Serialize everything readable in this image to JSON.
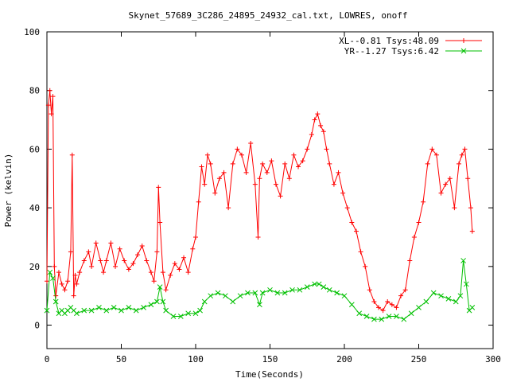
{
  "chart_data": {
    "type": "line",
    "title": "Skynet_57689_3C286_24895_24932_cal.txt, LOWRES, onoff",
    "xlabel": "Time(Seconds)",
    "ylabel": "Power (kelvin)",
    "xlim": [
      0,
      300
    ],
    "ylim": [
      -8,
      100
    ],
    "x_ticks": [
      0,
      50,
      100,
      150,
      200,
      250,
      300
    ],
    "y_ticks": [
      0,
      20,
      40,
      60,
      80,
      100
    ],
    "grid": false,
    "legend_position": "top-right",
    "series": [
      {
        "name": "XL--0.81 Tsys:48.09",
        "color": "#ff0000",
        "marker": "plus",
        "x": [
          0,
          1,
          2,
          3,
          4,
          5,
          6,
          8,
          10,
          12,
          14,
          16,
          17,
          18,
          19,
          20,
          22,
          25,
          28,
          30,
          33,
          36,
          38,
          40,
          43,
          46,
          49,
          52,
          55,
          58,
          61,
          64,
          67,
          70,
          72,
          74,
          75,
          76,
          78,
          80,
          83,
          86,
          89,
          92,
          95,
          98,
          100,
          102,
          104,
          106,
          108,
          110,
          113,
          116,
          119,
          122,
          125,
          128,
          131,
          134,
          137,
          140,
          142,
          143,
          145,
          148,
          151,
          154,
          157,
          160,
          163,
          166,
          169,
          172,
          175,
          178,
          180,
          182,
          184,
          186,
          188,
          190,
          193,
          196,
          199,
          202,
          205,
          208,
          211,
          214,
          217,
          220,
          223,
          226,
          229,
          232,
          235,
          238,
          241,
          244,
          247,
          250,
          253,
          256,
          259,
          262,
          265,
          268,
          271,
          274,
          277,
          279,
          281,
          283,
          285,
          286
        ],
        "y": [
          15,
          75,
          80,
          72,
          78,
          20,
          10,
          18,
          14,
          12,
          15,
          25,
          58,
          10,
          17,
          14,
          18,
          22,
          25,
          20,
          28,
          22,
          18,
          22,
          28,
          20,
          26,
          22,
          19,
          21,
          24,
          27,
          22,
          18,
          15,
          25,
          47,
          35,
          18,
          12,
          17,
          21,
          19,
          23,
          18,
          26,
          30,
          42,
          54,
          48,
          58,
          55,
          45,
          50,
          52,
          40,
          55,
          60,
          58,
          52,
          62,
          48,
          30,
          50,
          55,
          52,
          56,
          48,
          44,
          55,
          50,
          58,
          54,
          56,
          60,
          65,
          70,
          72,
          68,
          66,
          60,
          55,
          48,
          52,
          45,
          40,
          35,
          32,
          25,
          20,
          12,
          8,
          6,
          5,
          8,
          7,
          6,
          10,
          12,
          22,
          30,
          35,
          42,
          55,
          60,
          58,
          45,
          48,
          50,
          40,
          55,
          58,
          60,
          50,
          40,
          32
        ]
      },
      {
        "name": "YR--1.27 Tsys:6.42",
        "color": "#00c000",
        "marker": "cross",
        "x": [
          0,
          2,
          4,
          6,
          8,
          10,
          12,
          14,
          16,
          18,
          20,
          25,
          30,
          35,
          40,
          45,
          50,
          55,
          60,
          65,
          70,
          74,
          76,
          78,
          80,
          85,
          90,
          95,
          100,
          103,
          106,
          110,
          115,
          120,
          125,
          130,
          135,
          140,
          143,
          145,
          150,
          155,
          160,
          165,
          170,
          175,
          180,
          183,
          186,
          190,
          195,
          200,
          205,
          210,
          215,
          220,
          225,
          230,
          235,
          240,
          245,
          250,
          255,
          260,
          265,
          270,
          275,
          278,
          280,
          282,
          284,
          286
        ],
        "y": [
          5,
          18,
          16,
          8,
          4,
          5,
          4,
          5,
          6,
          5,
          4,
          5,
          5,
          6,
          5,
          6,
          5,
          6,
          5,
          6,
          7,
          8,
          13,
          8,
          5,
          3,
          3,
          4,
          4,
          5,
          8,
          10,
          11,
          10,
          8,
          10,
          11,
          11,
          7,
          11,
          12,
          11,
          11,
          12,
          12,
          13,
          14,
          14,
          13,
          12,
          11,
          10,
          7,
          4,
          3,
          2,
          2,
          3,
          3,
          2,
          4,
          6,
          8,
          11,
          10,
          9,
          8,
          10,
          22,
          14,
          5,
          6
        ]
      }
    ]
  }
}
